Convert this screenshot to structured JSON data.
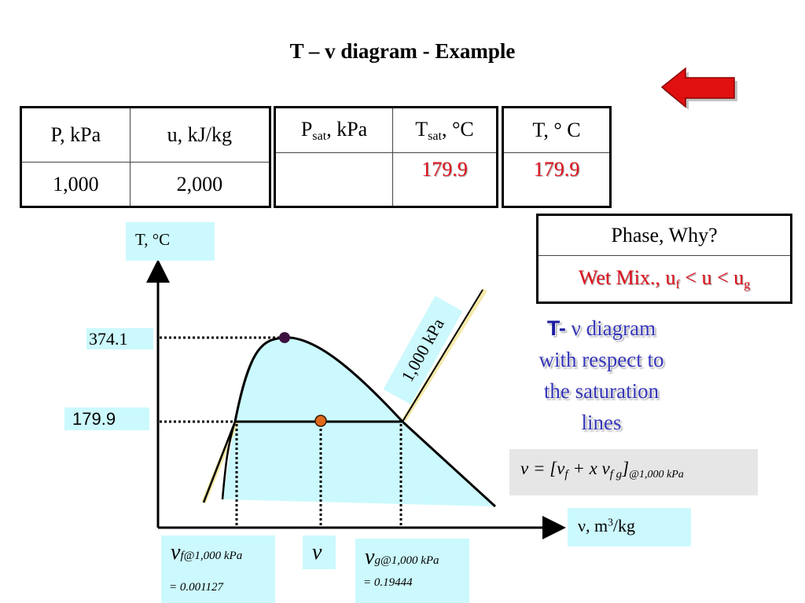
{
  "title": "T – v diagram - Example",
  "table1": {
    "h1": "P, kPa",
    "h2": "u, kJ/kg",
    "v1": "1,000",
    "v2": "2,000"
  },
  "table2": {
    "h1_main": "P",
    "h1_sub": "sat",
    "h1_rest": ", kPa",
    "h2_main": "T",
    "h2_sub": "sat",
    "h2_rest": ", °C",
    "v1": "",
    "v2": "179.9"
  },
  "table3": {
    "h1": "T, ° C",
    "v1": "179.9"
  },
  "phase_table": {
    "header": "Phase, Why?",
    "ans_prefix": "Wet Mix., u",
    "ans_sub1": "f",
    "ans_mid": " < u < u",
    "ans_sub2": "g"
  },
  "diagram": {
    "y_axis_label": "T, °C",
    "x_axis_label_main": "ν, m",
    "x_axis_label_sup": "3",
    "x_axis_label_rest": "/kg",
    "t_critical": "374.1",
    "t_sat": "179.9",
    "isobar_label": "1,000 kPa",
    "vf_symbol": "ν",
    "vf_sub": "f@1,000 kPa",
    "vf_value": "= 0.001127",
    "v_symbol": "ν",
    "vg_symbol": "ν",
    "vg_sub": "g@1,000 kPa",
    "vg_value": "= 0.19444",
    "colors": {
      "dome_fill": "#ccf9fd",
      "critical_point": "#3d1040",
      "state_point": "#e06a1c",
      "isobar_line": "#f4e9a8"
    }
  },
  "caption": {
    "t": "T-",
    "rest1": " ν diagram",
    "line2": "with respect to",
    "line3": "the saturation",
    "line4": "lines"
  },
  "formula": {
    "lhs": "ν  = [ν",
    "f": "f",
    "plus": " + x ν",
    "fg": "f g",
    "close": "]",
    "cond": "@1,000 kPa"
  },
  "back_button": {
    "icon": "back-arrow-icon",
    "color": "#e01010"
  }
}
